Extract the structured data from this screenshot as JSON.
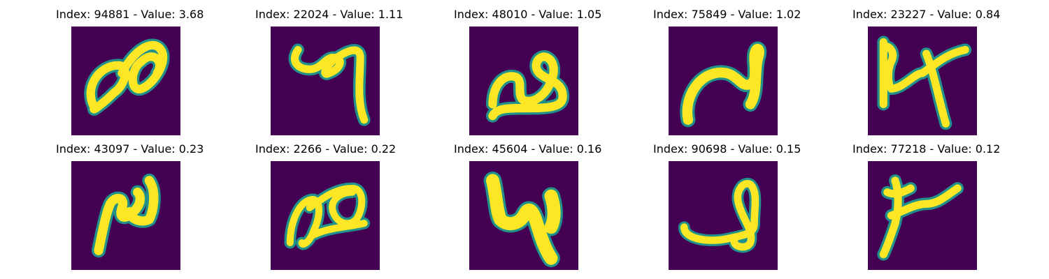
{
  "colors": {
    "background": "#440154",
    "stroke_core": "#fde725",
    "stroke_edge": "#21918c"
  },
  "panels": [
    {
      "title": "Index: 94881 - Value: 3.68",
      "glyph": "infinity-like loop"
    },
    {
      "title": "Index: 22024 - Value: 1.11",
      "glyph": "hooked y shape"
    },
    {
      "title": "Index: 48010 - Value: 1.05",
      "glyph": "wavy n shape"
    },
    {
      "title": "Index: 75849 - Value: 1.02",
      "glyph": "s curve"
    },
    {
      "title": "Index: 23227 - Value: 0.84",
      "glyph": "k-like shape"
    },
    {
      "title": "Index: 43097 - Value: 0.23",
      "glyph": "zigzag n shape"
    },
    {
      "title": "Index: 2266 - Value: 0.22",
      "glyph": "looped pm shape"
    },
    {
      "title": "Index: 45604 - Value: 0.16",
      "glyph": "bold n-v shape"
    },
    {
      "title": "Index: 90698 - Value: 0.15",
      "glyph": "looped tail shape"
    },
    {
      "title": "Index: 77218 - Value: 0.12",
      "glyph": "t-like shape"
    }
  ]
}
